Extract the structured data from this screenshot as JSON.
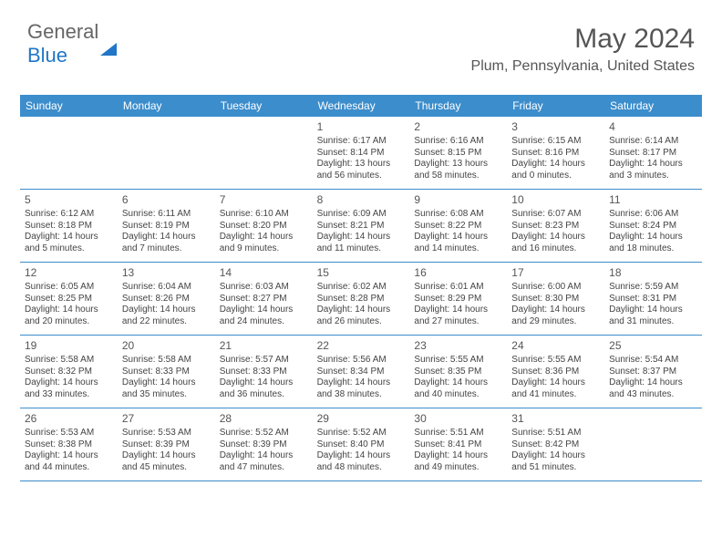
{
  "logo": {
    "part1": "General",
    "part2": "Blue"
  },
  "header": {
    "month_title": "May 2024",
    "location": "Plum, Pennsylvania, United States"
  },
  "calendar": {
    "type": "table",
    "header_bg": "#3c8dcc",
    "header_fg": "#ffffff",
    "border_color": "#3c8dcc",
    "background_color": "#ffffff",
    "text_color": "#444444",
    "daynum_fontsize": 12,
    "detail_fontsize": 10,
    "columns": [
      "Sunday",
      "Monday",
      "Tuesday",
      "Wednesday",
      "Thursday",
      "Friday",
      "Saturday"
    ],
    "weeks": [
      [
        null,
        null,
        null,
        {
          "num": "1",
          "sunrise": "Sunrise: 6:17 AM",
          "sunset": "Sunset: 8:14 PM",
          "daylight": "Daylight: 13 hours and 56 minutes."
        },
        {
          "num": "2",
          "sunrise": "Sunrise: 6:16 AM",
          "sunset": "Sunset: 8:15 PM",
          "daylight": "Daylight: 13 hours and 58 minutes."
        },
        {
          "num": "3",
          "sunrise": "Sunrise: 6:15 AM",
          "sunset": "Sunset: 8:16 PM",
          "daylight": "Daylight: 14 hours and 0 minutes."
        },
        {
          "num": "4",
          "sunrise": "Sunrise: 6:14 AM",
          "sunset": "Sunset: 8:17 PM",
          "daylight": "Daylight: 14 hours and 3 minutes."
        }
      ],
      [
        {
          "num": "5",
          "sunrise": "Sunrise: 6:12 AM",
          "sunset": "Sunset: 8:18 PM",
          "daylight": "Daylight: 14 hours and 5 minutes."
        },
        {
          "num": "6",
          "sunrise": "Sunrise: 6:11 AM",
          "sunset": "Sunset: 8:19 PM",
          "daylight": "Daylight: 14 hours and 7 minutes."
        },
        {
          "num": "7",
          "sunrise": "Sunrise: 6:10 AM",
          "sunset": "Sunset: 8:20 PM",
          "daylight": "Daylight: 14 hours and 9 minutes."
        },
        {
          "num": "8",
          "sunrise": "Sunrise: 6:09 AM",
          "sunset": "Sunset: 8:21 PM",
          "daylight": "Daylight: 14 hours and 11 minutes."
        },
        {
          "num": "9",
          "sunrise": "Sunrise: 6:08 AM",
          "sunset": "Sunset: 8:22 PM",
          "daylight": "Daylight: 14 hours and 14 minutes."
        },
        {
          "num": "10",
          "sunrise": "Sunrise: 6:07 AM",
          "sunset": "Sunset: 8:23 PM",
          "daylight": "Daylight: 14 hours and 16 minutes."
        },
        {
          "num": "11",
          "sunrise": "Sunrise: 6:06 AM",
          "sunset": "Sunset: 8:24 PM",
          "daylight": "Daylight: 14 hours and 18 minutes."
        }
      ],
      [
        {
          "num": "12",
          "sunrise": "Sunrise: 6:05 AM",
          "sunset": "Sunset: 8:25 PM",
          "daylight": "Daylight: 14 hours and 20 minutes."
        },
        {
          "num": "13",
          "sunrise": "Sunrise: 6:04 AM",
          "sunset": "Sunset: 8:26 PM",
          "daylight": "Daylight: 14 hours and 22 minutes."
        },
        {
          "num": "14",
          "sunrise": "Sunrise: 6:03 AM",
          "sunset": "Sunset: 8:27 PM",
          "daylight": "Daylight: 14 hours and 24 minutes."
        },
        {
          "num": "15",
          "sunrise": "Sunrise: 6:02 AM",
          "sunset": "Sunset: 8:28 PM",
          "daylight": "Daylight: 14 hours and 26 minutes."
        },
        {
          "num": "16",
          "sunrise": "Sunrise: 6:01 AM",
          "sunset": "Sunset: 8:29 PM",
          "daylight": "Daylight: 14 hours and 27 minutes."
        },
        {
          "num": "17",
          "sunrise": "Sunrise: 6:00 AM",
          "sunset": "Sunset: 8:30 PM",
          "daylight": "Daylight: 14 hours and 29 minutes."
        },
        {
          "num": "18",
          "sunrise": "Sunrise: 5:59 AM",
          "sunset": "Sunset: 8:31 PM",
          "daylight": "Daylight: 14 hours and 31 minutes."
        }
      ],
      [
        {
          "num": "19",
          "sunrise": "Sunrise: 5:58 AM",
          "sunset": "Sunset: 8:32 PM",
          "daylight": "Daylight: 14 hours and 33 minutes."
        },
        {
          "num": "20",
          "sunrise": "Sunrise: 5:58 AM",
          "sunset": "Sunset: 8:33 PM",
          "daylight": "Daylight: 14 hours and 35 minutes."
        },
        {
          "num": "21",
          "sunrise": "Sunrise: 5:57 AM",
          "sunset": "Sunset: 8:33 PM",
          "daylight": "Daylight: 14 hours and 36 minutes."
        },
        {
          "num": "22",
          "sunrise": "Sunrise: 5:56 AM",
          "sunset": "Sunset: 8:34 PM",
          "daylight": "Daylight: 14 hours and 38 minutes."
        },
        {
          "num": "23",
          "sunrise": "Sunrise: 5:55 AM",
          "sunset": "Sunset: 8:35 PM",
          "daylight": "Daylight: 14 hours and 40 minutes."
        },
        {
          "num": "24",
          "sunrise": "Sunrise: 5:55 AM",
          "sunset": "Sunset: 8:36 PM",
          "daylight": "Daylight: 14 hours and 41 minutes."
        },
        {
          "num": "25",
          "sunrise": "Sunrise: 5:54 AM",
          "sunset": "Sunset: 8:37 PM",
          "daylight": "Daylight: 14 hours and 43 minutes."
        }
      ],
      [
        {
          "num": "26",
          "sunrise": "Sunrise: 5:53 AM",
          "sunset": "Sunset: 8:38 PM",
          "daylight": "Daylight: 14 hours and 44 minutes."
        },
        {
          "num": "27",
          "sunrise": "Sunrise: 5:53 AM",
          "sunset": "Sunset: 8:39 PM",
          "daylight": "Daylight: 14 hours and 45 minutes."
        },
        {
          "num": "28",
          "sunrise": "Sunrise: 5:52 AM",
          "sunset": "Sunset: 8:39 PM",
          "daylight": "Daylight: 14 hours and 47 minutes."
        },
        {
          "num": "29",
          "sunrise": "Sunrise: 5:52 AM",
          "sunset": "Sunset: 8:40 PM",
          "daylight": "Daylight: 14 hours and 48 minutes."
        },
        {
          "num": "30",
          "sunrise": "Sunrise: 5:51 AM",
          "sunset": "Sunset: 8:41 PM",
          "daylight": "Daylight: 14 hours and 49 minutes."
        },
        {
          "num": "31",
          "sunrise": "Sunrise: 5:51 AM",
          "sunset": "Sunset: 8:42 PM",
          "daylight": "Daylight: 14 hours and 51 minutes."
        },
        null
      ]
    ]
  }
}
